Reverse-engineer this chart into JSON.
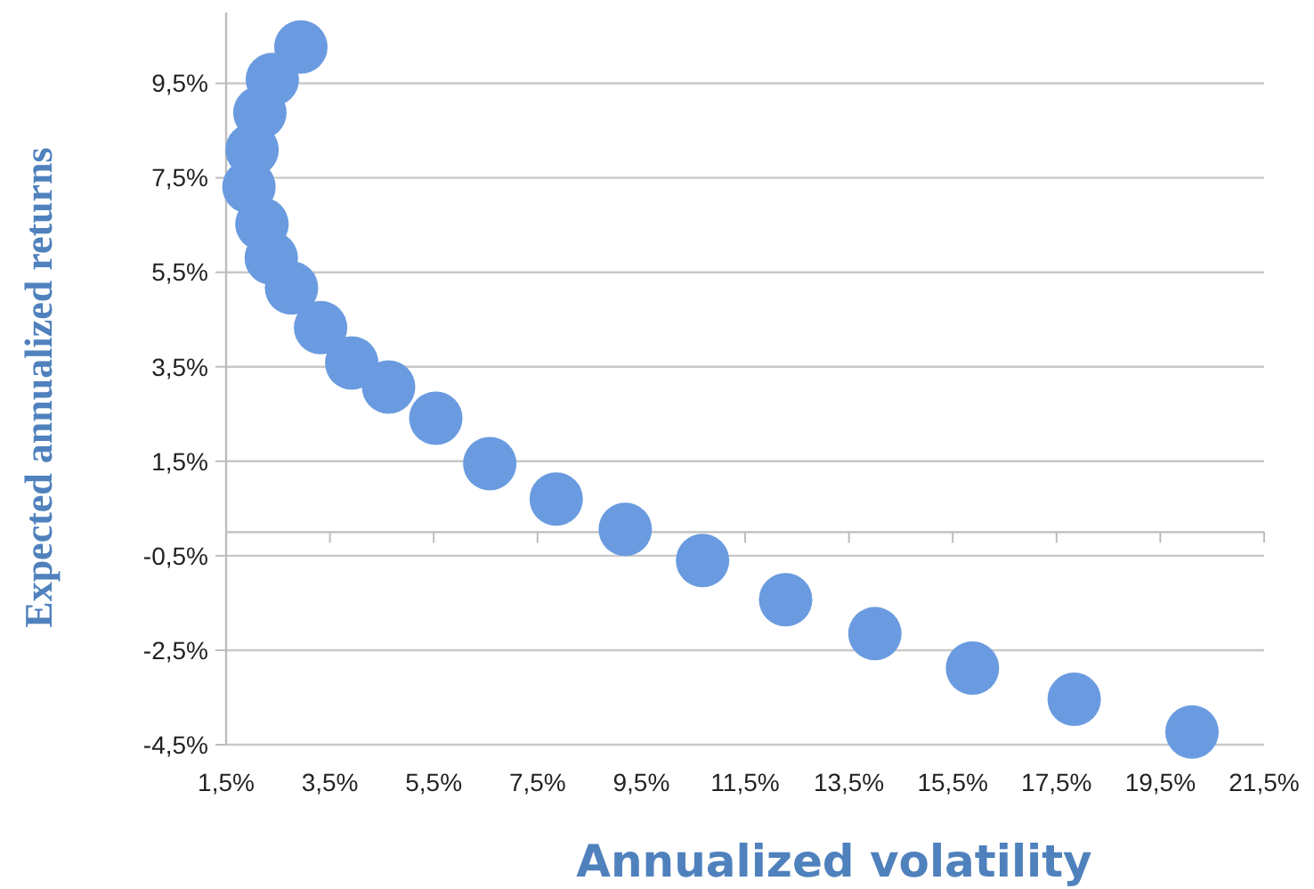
{
  "chart_data": {
    "type": "scatter",
    "xlabel": "Annualized volatility",
    "ylabel": "Expected annualized returns",
    "x": [
      2.94,
      2.39,
      2.15,
      2.0,
      1.94,
      2.19,
      2.37,
      2.76,
      3.32,
      3.92,
      4.63,
      5.54,
      6.58,
      7.86,
      9.19,
      10.68,
      12.28,
      14.0,
      15.88,
      17.84,
      20.11
    ],
    "series": [
      {
        "color": "#6a9be0",
        "values": [
          10.27,
          9.58,
          8.88,
          8.09,
          7.31,
          6.52,
          5.8,
          5.17,
          4.33,
          3.58,
          3.07,
          2.41,
          1.45,
          0.7,
          0.06,
          -0.6,
          -1.43,
          -2.15,
          -2.88,
          -3.54,
          -4.23
        ]
      }
    ],
    "marker": "circle",
    "xlim": [
      1.5,
      21.5
    ],
    "ylim": [
      -4.5,
      11
    ],
    "xticks": [
      {
        "value": 1.5,
        "label": "1,5%"
      },
      {
        "value": 3.5,
        "label": "3,5%"
      },
      {
        "value": 5.5,
        "label": "5,5%"
      },
      {
        "value": 7.5,
        "label": "7,5%"
      },
      {
        "value": 9.5,
        "label": "9,5%"
      },
      {
        "value": 11.5,
        "label": "11,5%"
      },
      {
        "value": 13.5,
        "label": "13,5%"
      },
      {
        "value": 15.5,
        "label": "15,5%"
      },
      {
        "value": 17.5,
        "label": "17,5%"
      },
      {
        "value": 19.5,
        "label": "19,5%"
      },
      {
        "value": 21.5,
        "label": "21,5%"
      }
    ],
    "yticks": [
      {
        "value": -4.5,
        "label": "-4,5%"
      },
      {
        "value": -2.5,
        "label": "-2,5%"
      },
      {
        "value": -0.5,
        "label": "-0,5%"
      },
      {
        "value": 1.5,
        "label": "1,5%"
      },
      {
        "value": 3.5,
        "label": "3,5%"
      },
      {
        "value": 5.5,
        "label": "5,5%"
      },
      {
        "value": 7.5,
        "label": "7,5%"
      },
      {
        "value": 9.5,
        "label": "9,5%"
      }
    ],
    "grid": "y"
  }
}
